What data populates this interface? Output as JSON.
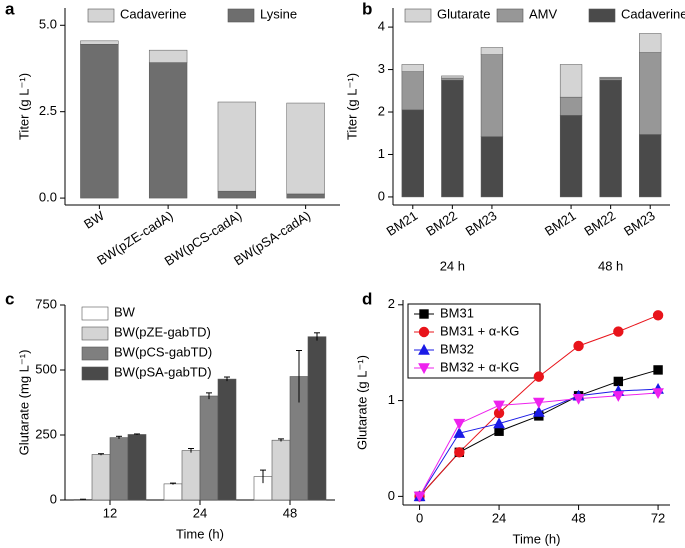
{
  "chart_data": [
    {
      "type": "stacked_bar",
      "label": "a",
      "ylabel": "Titer (g L⁻¹)",
      "categories": [
        "BW",
        "BW(pZE-cadA)",
        "BW(pCS-cadA)",
        "BW(pSA-cadA)"
      ],
      "series": [
        {
          "name": "Lysine",
          "color": "#6e6e6e",
          "values": [
            4.45,
            3.92,
            0.2,
            0.12
          ]
        },
        {
          "name": "Cadaverine",
          "color": "#d4d4d4",
          "values": [
            0.1,
            0.36,
            2.58,
            2.63
          ]
        }
      ],
      "legend_order": [
        1,
        0
      ],
      "ylim": [
        -0.2,
        5.5
      ],
      "yticks": [
        {
          "value": 0,
          "label": "0.0"
        },
        2.5,
        {
          "value": 5,
          "label": "5.0"
        }
      ]
    },
    {
      "type": "stacked_bar",
      "label": "b",
      "ylabel": "Titer (g L⁻¹)",
      "categories": [
        "BM21",
        "BM22",
        "BM23",
        null,
        "BM21",
        "BM22",
        "BM23"
      ],
      "group_labels": [
        "24 h",
        "48 h"
      ],
      "series": [
        {
          "name": "Cadaverine",
          "color": "#4a4a4a",
          "values": [
            2.05,
            2.75,
            1.42,
            null,
            1.92,
            2.75,
            1.47
          ]
        },
        {
          "name": "AMV",
          "color": "#979797",
          "values": [
            0.9,
            0.05,
            1.93,
            null,
            0.43,
            0.05,
            1.93
          ]
        },
        {
          "name": "Glutarate",
          "color": "#d4d4d4",
          "values": [
            0.17,
            0.05,
            0.17,
            null,
            0.77,
            0.02,
            0.45
          ]
        }
      ],
      "legend_order": [
        2,
        1,
        0
      ],
      "ylim": [
        -0.19,
        4.45
      ],
      "yticks": [
        0,
        1,
        2,
        3,
        4
      ]
    },
    {
      "type": "grouped_bar",
      "label": "c",
      "ylabel": "Glutarate (mg L⁻¹)",
      "xlabel": "Time (h)",
      "categories": [
        "12",
        "24",
        "48"
      ],
      "series": [
        {
          "name": "BW",
          "color": "#ffffff",
          "values": [
            2,
            62,
            90
          ],
          "errors": [
            1,
            3,
            25
          ]
        },
        {
          "name": "BW(pZE-gabTD)",
          "color": "#d4d4d4",
          "values": [
            175,
            190,
            230
          ],
          "errors": [
            3,
            8,
            5
          ]
        },
        {
          "name": "BW(pCS-gabTD)",
          "color": "#7f7f7f",
          "values": [
            240,
            400,
            475
          ],
          "errors": [
            5,
            12,
            100
          ]
        },
        {
          "name": "BW(pSA-gabTD)",
          "color": "#4a4a4a",
          "values": [
            252,
            465,
            628
          ],
          "errors": [
            2,
            8,
            15
          ]
        }
      ],
      "ylim": [
        0,
        750
      ],
      "yticks": [
        0,
        250,
        500,
        750
      ]
    },
    {
      "type": "line",
      "label": "d",
      "ylabel": "Glutarate (g L⁻¹)",
      "xlabel": "Time (h)",
      "x": [
        0,
        12,
        24,
        36,
        48,
        60,
        72
      ],
      "series": [
        {
          "name": "BM31",
          "color": "#000000",
          "marker": "square",
          "values": [
            0,
            0.46,
            0.68,
            0.84,
            1.05,
            1.2,
            1.32
          ]
        },
        {
          "name": "BM31 + α-KG",
          "color": "#e8141b",
          "marker": "circle",
          "values": [
            0,
            0.46,
            0.87,
            1.25,
            1.57,
            1.72,
            1.89
          ]
        },
        {
          "name": "BM32",
          "color": "#1a1ae6",
          "marker": "triangle",
          "values": [
            0,
            0.66,
            0.76,
            0.88,
            1.05,
            1.1,
            1.12
          ]
        },
        {
          "name": "BM32 + α-KG",
          "color": "#ee22ee",
          "marker": "triangle-down",
          "values": [
            0,
            0.76,
            0.95,
            0.98,
            1.02,
            1.05,
            1.08
          ]
        }
      ],
      "xlim": [
        -5,
        75.6
      ],
      "xticks": [
        0,
        24,
        48,
        72
      ],
      "ylim": [
        -0.09,
        2.05
      ],
      "yticks": [
        0,
        1,
        2
      ]
    }
  ]
}
